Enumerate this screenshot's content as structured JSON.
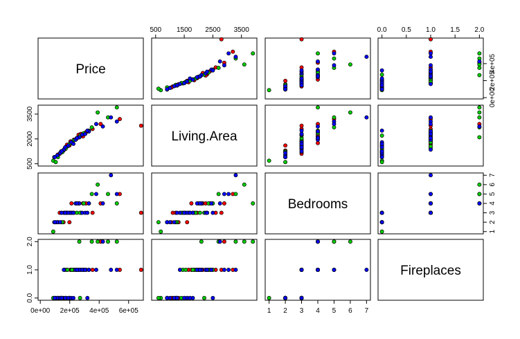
{
  "chart_data": {
    "type": "scatter",
    "variables": [
      {
        "name": "Price",
        "lim": [
          -15000,
          700000
        ],
        "xticks": [
          {
            "value": 0,
            "label": "0e+00"
          },
          {
            "value": 200000,
            "label": "2e+05"
          },
          {
            "value": 400000,
            "label": "4e+05"
          },
          {
            "value": 600000,
            "label": "6e+05"
          }
        ],
        "yticks": [
          {
            "value": 0,
            "label": "0e+00"
          },
          {
            "value": 200000,
            "label": "2e+05"
          },
          {
            "value": 400000,
            "label": "4e+05"
          }
        ]
      },
      {
        "name": "Living.Area",
        "lim": [
          360,
          4040
        ],
        "xticks": [
          500,
          1500,
          2500,
          3500
        ],
        "yticks": [
          500,
          2000,
          3500
        ]
      },
      {
        "name": "Bedrooms",
        "lim": [
          0.76,
          7.24
        ],
        "xticks": [
          1,
          2,
          3,
          4,
          5,
          6,
          7
        ],
        "yticks": [
          1,
          2,
          3,
          4,
          5,
          6,
          7
        ]
      },
      {
        "name": "Fireplaces",
        "lim": [
          -0.08,
          2.08
        ],
        "xticks": [
          {
            "value": 0,
            "label": "0.0"
          },
          {
            "value": 0.5,
            "label": "0.5"
          },
          {
            "value": 1,
            "label": "1.0"
          },
          {
            "value": 1.5,
            "label": "1.5"
          },
          {
            "value": 2,
            "label": "2.0"
          }
        ],
        "yticks": [
          {
            "value": 0,
            "label": "0.0"
          },
          {
            "value": 1,
            "label": "1.0"
          },
          {
            "value": 2,
            "label": "2.0"
          }
        ]
      }
    ],
    "series": [
      {
        "color": "#ff0000",
        "values": [
          [
            132000,
            181000,
            95000,
            245000,
            310000,
            205000,
            158000,
            275000,
            410000,
            228000,
            175000,
            119000,
            290000,
            355000,
            685000,
            212000,
            145000,
            260000,
            198000,
            540000
          ],
          [
            1100,
            1650,
            900,
            2000,
            2400,
            1850,
            1300,
            2300,
            2900,
            1950,
            1500,
            1050,
            2150,
            2600,
            2800,
            1750,
            1200,
            2250,
            1600,
            3200
          ],
          [
            3,
            3,
            2,
            4,
            4,
            3,
            2,
            3,
            4,
            3,
            3,
            2,
            4,
            3,
            3,
            4,
            3,
            4,
            2,
            5
          ],
          [
            0,
            1,
            0,
            1,
            1,
            1,
            0,
            1,
            2,
            1,
            0,
            0,
            1,
            1,
            1,
            1,
            0,
            1,
            0,
            1
          ]
        ]
      },
      {
        "color": "#00cd00",
        "values": [
          [
            88000,
            142000,
            167000,
            225000,
            265000,
            199000,
            330000,
            120000,
            390000,
            248000,
            172000,
            460000,
            105000,
            295000,
            215000,
            150000,
            350000,
            185000,
            520000,
            270000
          ],
          [
            680,
            1250,
            1450,
            1900,
            2100,
            1700,
            2500,
            900,
            3600,
            2050,
            1400,
            3300,
            600,
            2350,
            1800,
            1200,
            2700,
            1550,
            3900,
            2200
          ],
          [
            1,
            2,
            3,
            3,
            4,
            3,
            4,
            2,
            6,
            3,
            3,
            5,
            2,
            4,
            3,
            2,
            5,
            3,
            4,
            3
          ],
          [
            0,
            0,
            1,
            1,
            2,
            0,
            1,
            0,
            2,
            1,
            0,
            2,
            0,
            1,
            1,
            0,
            2,
            1,
            2,
            0
          ]
        ]
      },
      {
        "color": "#0000ff",
        "values": [
          [
            115000,
            160000,
            210000,
            240000,
            285000,
            135000,
            330000,
            190000,
            520000,
            265000,
            170000,
            425000,
            98000,
            305000,
            225000,
            380000,
            145000,
            250000,
            480000,
            320000
          ],
          [
            1000,
            1350,
            1800,
            1950,
            2250,
            1150,
            2450,
            1600,
            3050,
            2100,
            1500,
            2750,
            900,
            2300,
            1700,
            2900,
            1250,
            2050,
            3300,
            2500
          ],
          [
            2,
            3,
            3,
            4,
            3,
            2,
            4,
            3,
            5,
            4,
            3,
            4,
            2,
            3,
            3,
            5,
            3,
            4,
            7,
            3
          ],
          [
            0,
            1,
            0,
            1,
            1,
            0,
            1,
            0,
            1,
            1,
            0,
            2,
            0,
            1,
            0,
            1,
            0,
            1,
            1,
            0
          ]
        ]
      }
    ]
  }
}
